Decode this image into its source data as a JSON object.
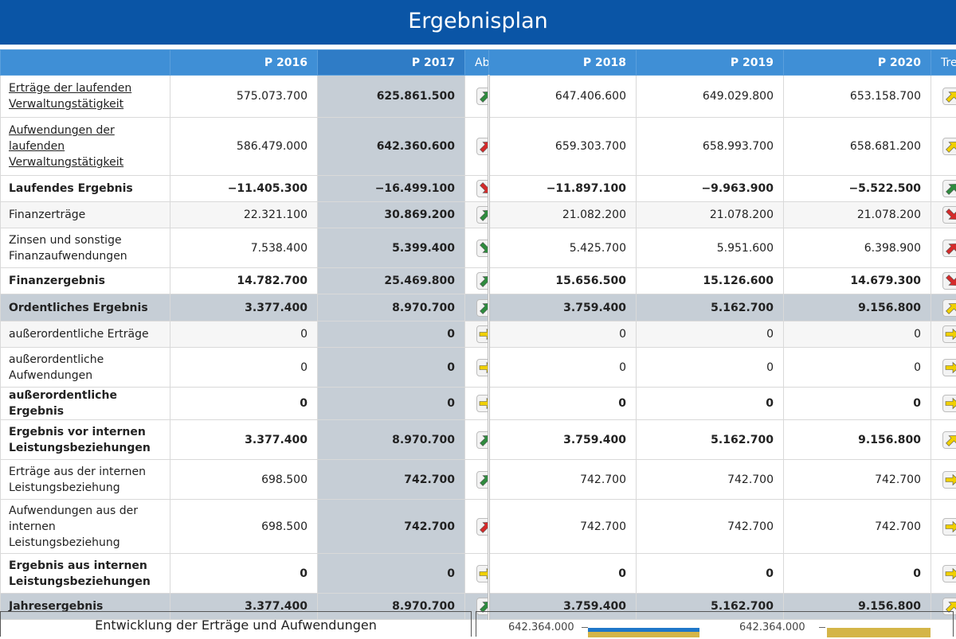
{
  "page_title": "Ergebnisplan",
  "columns": {
    "label": "",
    "p2016": "P 2016",
    "p2017": "P 2017",
    "ab": "Ab",
    "p2018": "P 2018",
    "p2019": "P 2019",
    "p2020": "P 2020",
    "tr": "Tre"
  },
  "rows": [
    {
      "label": "Erträge der laufenden Verwaltungstätigkeit",
      "p2016": "575.073.700",
      "p2017": "625.861.500",
      "ab": "up-green",
      "p2018": "647.406.600",
      "p2019": "649.029.800",
      "p2020": "653.158.700",
      "tr": "up-yellow"
    },
    {
      "label": "Aufwendungen der laufenden Verwaltungstätigkeit",
      "p2016": "586.479.000",
      "p2017": "642.360.600",
      "ab": "up-red",
      "p2018": "659.303.700",
      "p2019": "658.993.700",
      "p2020": "658.681.200",
      "tr": "up-yellow"
    },
    {
      "label": "Laufendes Ergebnis",
      "p2016": "−11.405.300",
      "p2017": "−16.499.100",
      "ab": "down-red",
      "p2018": "−11.897.100",
      "p2019": "−9.963.900",
      "p2020": "−5.522.500",
      "tr": "up-green"
    },
    {
      "label": "Finanzerträge",
      "p2016": "22.321.100",
      "p2017": "30.869.200",
      "ab": "up-green",
      "p2018": "21.082.200",
      "p2019": "21.078.200",
      "p2020": "21.078.200",
      "tr": "down-red"
    },
    {
      "label": "Zinsen und sonstige Finanzaufwendungen",
      "p2016": "7.538.400",
      "p2017": "5.399.400",
      "ab": "down-green",
      "p2018": "5.425.700",
      "p2019": "5.951.600",
      "p2020": "6.398.900",
      "tr": "up-red"
    },
    {
      "label": "Finanzergebnis",
      "p2016": "14.782.700",
      "p2017": "25.469.800",
      "ab": "up-green",
      "p2018": "15.656.500",
      "p2019": "15.126.600",
      "p2020": "14.679.300",
      "tr": "down-red"
    },
    {
      "label": "Ordentliches Ergebnis",
      "p2016": "3.377.400",
      "p2017": "8.970.700",
      "ab": "up-green",
      "p2018": "3.759.400",
      "p2019": "5.162.700",
      "p2020": "9.156.800",
      "tr": "up-yellow"
    },
    {
      "label": "außerordentliche Erträge",
      "p2016": "0",
      "p2017": "0",
      "ab": "right-yellow",
      "p2018": "0",
      "p2019": "0",
      "p2020": "0",
      "tr": "right-yellow"
    },
    {
      "label": "außerordentliche Aufwendungen",
      "p2016": "0",
      "p2017": "0",
      "ab": "right-yellow",
      "p2018": "0",
      "p2019": "0",
      "p2020": "0",
      "tr": "right-yellow"
    },
    {
      "label": "außerordentliche Ergebnis",
      "p2016": "0",
      "p2017": "0",
      "ab": "right-yellow",
      "p2018": "0",
      "p2019": "0",
      "p2020": "0",
      "tr": "right-yellow"
    },
    {
      "label": "Ergebnis vor internen Leistungsbeziehungen",
      "p2016": "3.377.400",
      "p2017": "8.970.700",
      "ab": "up-green",
      "p2018": "3.759.400",
      "p2019": "5.162.700",
      "p2020": "9.156.800",
      "tr": "up-yellow"
    },
    {
      "label": "Erträge aus der internen Leistungsbeziehung",
      "p2016": "698.500",
      "p2017": "742.700",
      "ab": "up-green",
      "p2018": "742.700",
      "p2019": "742.700",
      "p2020": "742.700",
      "tr": "right-yellow"
    },
    {
      "label": "Aufwendungen aus der internen Leistungsbeziehung",
      "p2016": "698.500",
      "p2017": "742.700",
      "ab": "up-red",
      "p2018": "742.700",
      "p2019": "742.700",
      "p2020": "742.700",
      "tr": "right-yellow"
    },
    {
      "label": "Ergebnis aus internen Leistungsbeziehungen",
      "p2016": "0",
      "p2017": "0",
      "ab": "right-yellow",
      "p2018": "0",
      "p2019": "0",
      "p2020": "0",
      "tr": "right-yellow"
    },
    {
      "label": "Jahresergebnis",
      "p2016": "3.377.400",
      "p2017": "8.970.700",
      "ab": "up-green",
      "p2018": "3.759.400",
      "p2019": "5.162.700",
      "p2020": "9.156.800",
      "tr": "up-yellow"
    }
  ],
  "bottom": {
    "chart_title": "Entwicklung der Erträge und Aufwendungen",
    "axis_label_1": "642.364.000",
    "axis_label_2": "642.364.000"
  },
  "colors": {
    "header_bg": "#0a55a6",
    "column_header_bg": "#3f8fd6",
    "highlight_bg": "#c6ced6",
    "bar_blue": "#1f77c9",
    "bar_gold": "#d4b548"
  }
}
